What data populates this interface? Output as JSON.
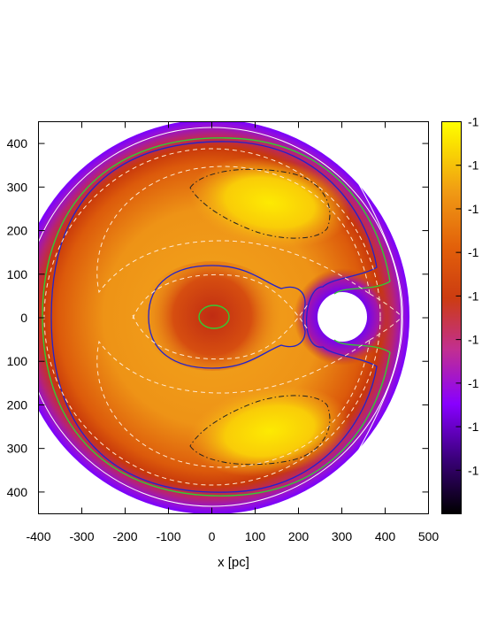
{
  "chart_data": {
    "type": "heatmap",
    "title": "",
    "xlabel": "x [pc]",
    "ylabel": "",
    "x_ticks": [
      -400,
      -300,
      -200,
      -100,
      0,
      100,
      200,
      300,
      400,
      500
    ],
    "y_ticks": [
      400,
      300,
      200,
      100,
      0,
      -100,
      -200,
      -300,
      -400
    ],
    "x_tick_labels": [
      "-400",
      "-300",
      "-200",
      "-100",
      "0",
      "100",
      "200",
      "300",
      "400",
      "500"
    ],
    "y_tick_labels": [
      "400",
      "300",
      "200",
      "100",
      "0",
      "100",
      "200",
      "300",
      "400"
    ],
    "xlim": [
      -400,
      500
    ],
    "ylim": [
      -450,
      450
    ],
    "grid": false,
    "domain": {
      "outer_radius": 450,
      "hole_center": [
        300,
        0
      ],
      "hole_radius": 55
    },
    "colorbar": {
      "palette": [
        "#000000",
        "#3a007a",
        "#8800ff",
        "#c22f90",
        "#cc3c11",
        "#e2600a",
        "#f09a14",
        "#fbe400",
        "#ffff00"
      ],
      "tick_labels": [
        "-1",
        "-1",
        "-1",
        "-1",
        "-1",
        "-1",
        "-1",
        "-1",
        "-1"
      ]
    },
    "contours": [
      {
        "name": "",
        "color": "#33cc33",
        "style": "solid",
        "shapes": [
          "central small oval around origin",
          "outer ring near r≈420 wrapping around the hole"
        ]
      },
      {
        "name": "",
        "color": "#2222cc",
        "style": "solid",
        "shapes": [
          "peanut-shaped contour enclosing the origin",
          "large horseshoe contour r≈400"
        ]
      },
      {
        "name": "",
        "color": "#ffe8d0",
        "style": "dashed",
        "shapes": [
          "separatrix crossing near x≈150",
          "large crescent loops"
        ]
      },
      {
        "name": "",
        "color": "#ffffff",
        "style": "solid",
        "shapes": [
          "outermost circle r≈440"
        ]
      },
      {
        "name": "",
        "color": "#222222",
        "style": "dash-dot",
        "shapes": [
          "upper lobe around (130, 260)",
          "lower lobe around (130, -260)"
        ]
      }
    ]
  }
}
